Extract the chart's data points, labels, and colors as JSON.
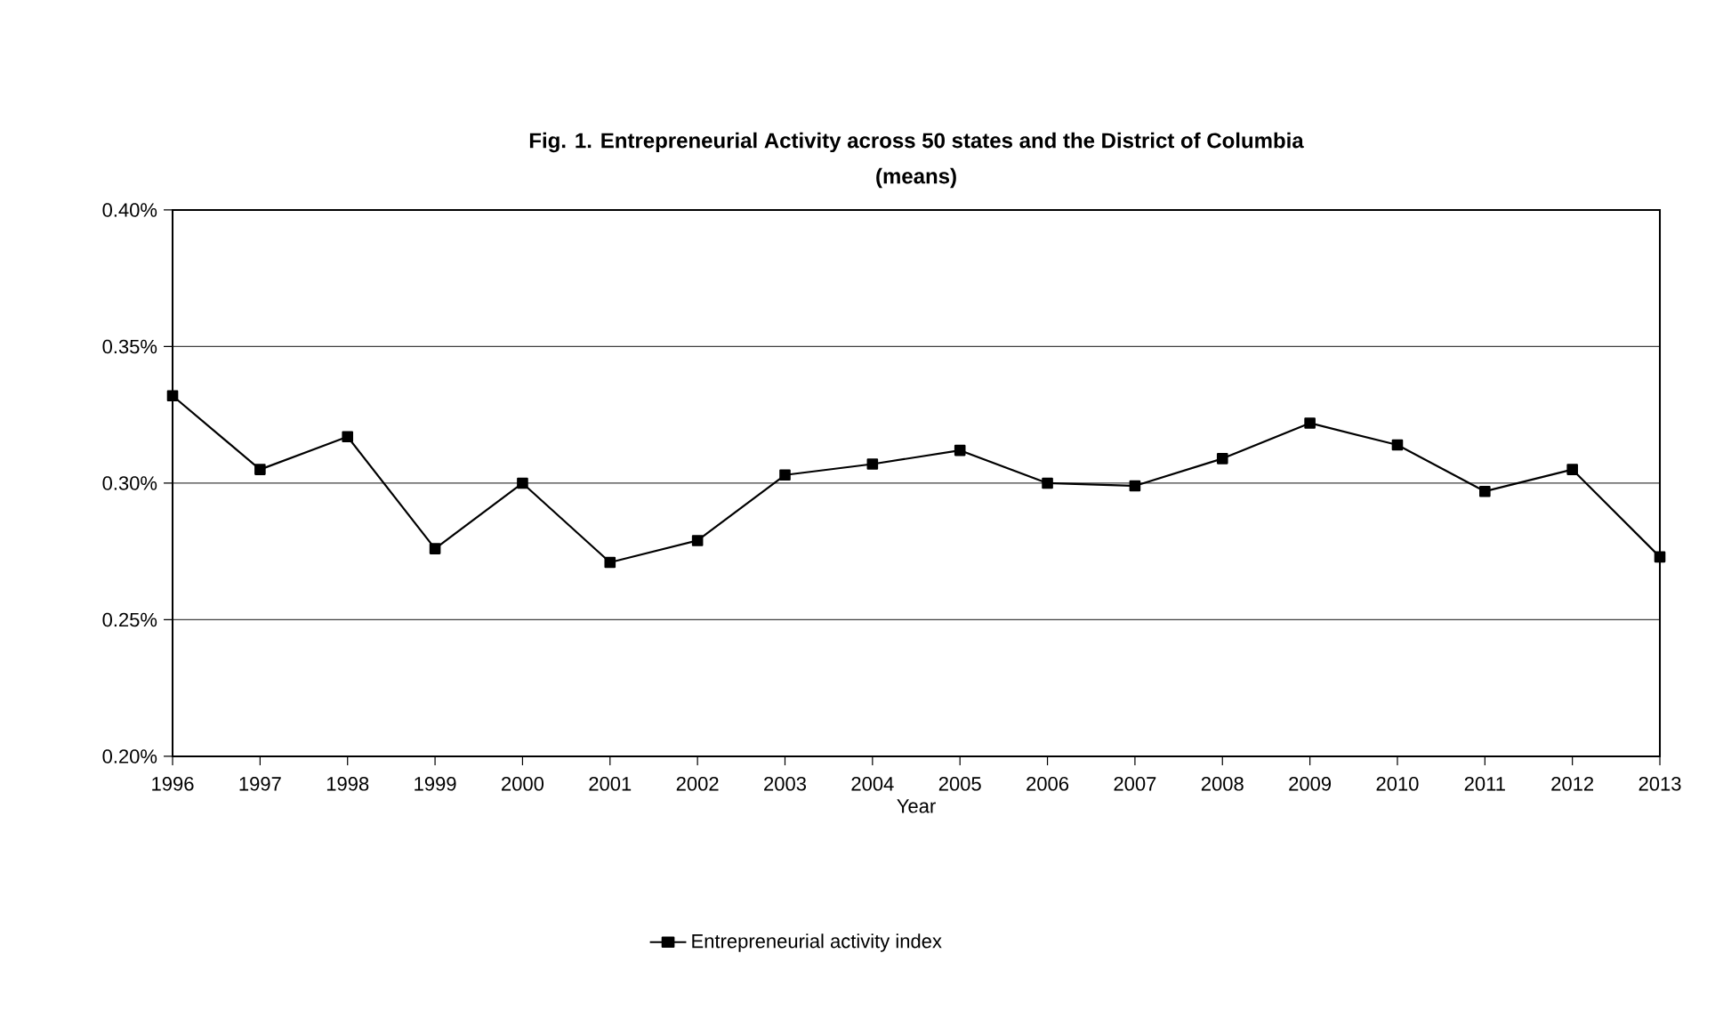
{
  "chart_data": {
    "type": "line",
    "title": "Fig. 1. Entrepreneurial Activity across 50 states and the District of Columbia",
    "subtitle": "(means)",
    "xlabel": "Year",
    "categories": [
      "1996",
      "1997",
      "1998",
      "1999",
      "2000",
      "2001",
      "2002",
      "2003",
      "2004",
      "2005",
      "2006",
      "2007",
      "2008",
      "2009",
      "2010",
      "2011",
      "2012",
      "2013"
    ],
    "series": [
      {
        "name": "Entrepreneurial activity index",
        "color": "#000000",
        "values": [
          0.332,
          0.305,
          0.317,
          0.276,
          0.3,
          0.271,
          0.279,
          0.303,
          0.307,
          0.312,
          0.3,
          0.299,
          0.309,
          0.322,
          0.314,
          0.297,
          0.305,
          0.273
        ]
      }
    ],
    "ylim": [
      0.2,
      0.4
    ],
    "yticks": [
      {
        "value": 0.2,
        "label": "0.20%"
      },
      {
        "value": 0.25,
        "label": "0.25%"
      },
      {
        "value": 0.3,
        "label": "0.30%"
      },
      {
        "value": 0.35,
        "label": "0.35%"
      },
      {
        "value": 0.4,
        "label": "0.40%"
      }
    ],
    "grid": "y",
    "legend": "bottom",
    "marker": "square",
    "line_style": "solid"
  }
}
